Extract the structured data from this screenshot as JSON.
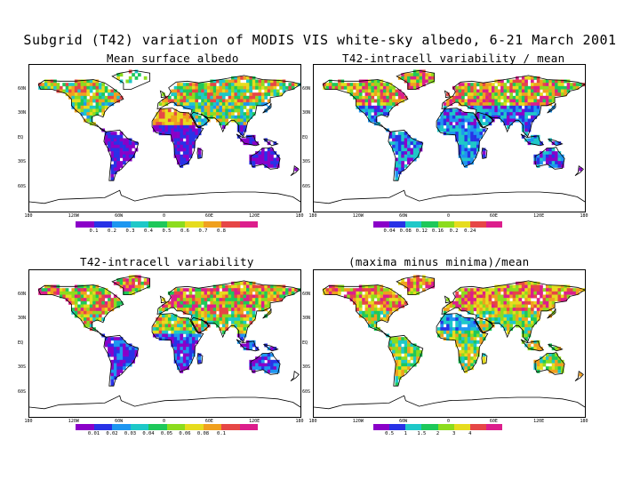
{
  "title": "Subgrid (T42) variation of MODIS VIS white-sky albedo, 6-21 March 2001",
  "lat_labels": [
    "60N",
    "30N",
    "EQ",
    "30S",
    "60S"
  ],
  "lon_labels": [
    "180",
    "120W",
    "60W",
    "0",
    "60E",
    "120E",
    "180"
  ],
  "palette": [
    "#8a00c8",
    "#2832e6",
    "#1e96f0",
    "#1ec8c8",
    "#1ec85a",
    "#8cdc1e",
    "#e6dc1e",
    "#f0a01e",
    "#e64646",
    "#dc1e8c"
  ],
  "colors": {
    "land_stroke": "#000000",
    "grid": "#999999"
  },
  "panels": [
    {
      "title": "Mean surface albedo",
      "colorbar_ticks": [
        "0.1",
        "0.2",
        "0.3",
        "0.4",
        "0.5",
        "0.6",
        "0.7",
        "0.8"
      ]
    },
    {
      "title": "T42-intracell variability / mean",
      "colorbar_ticks": [
        "0.04",
        "0.08",
        "0.12",
        "0.16",
        "0.2",
        "0.24"
      ]
    },
    {
      "title": "T42-intracell variability",
      "colorbar_ticks": [
        "0.01",
        "0.02",
        "0.03",
        "0.04",
        "0.05",
        "0.06",
        "0.08",
        "0.1"
      ]
    },
    {
      "title": "(maxima minus minima)/mean",
      "colorbar_ticks": [
        "0.5",
        "1",
        "1.5",
        "2",
        "3",
        "4"
      ]
    }
  ]
}
